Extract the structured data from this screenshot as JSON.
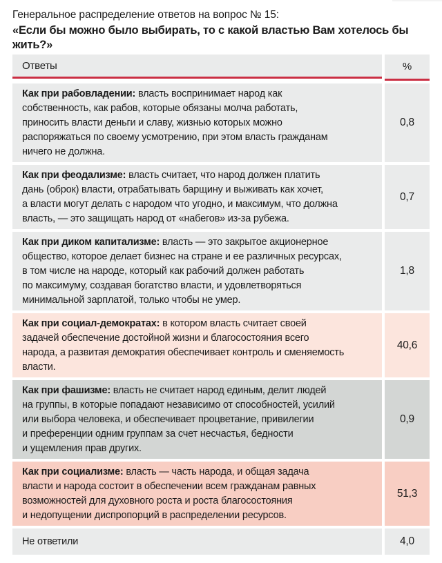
{
  "title": {
    "line1": "Генеральное распределение ответов на вопрос № 15:",
    "line2": "«Если бы можно было выбирать, то с какой властью Вам хотелось бы жить?»"
  },
  "colors": {
    "accent_red": "#cb2e43",
    "gray": "#eaebeb",
    "gray_dark": "#d3d6d4",
    "pink_light": "#fce5dd",
    "pink": "#f8cec3",
    "text": "#1b1b1b"
  },
  "table": {
    "headers": {
      "answers": "Ответы",
      "percent": "%"
    },
    "rows": [
      {
        "bold": "Как при рабовладении:",
        "text": " власть воспринимает народ как\nсобственность, как рабов, которые обязаны молча работать,\nприносить власти деньги и славу, жизнью которых можно\nраспоряжаться по своему усмотрению, при этом власть гражданам\nничего не должна.",
        "value": "0,8",
        "bg": "gray"
      },
      {
        "bold": "Как при феодализме:",
        "text": " власть считает, что народ должен платить\nдань (оброк) власти, отрабатывать барщину и выживать как хочет,\nа власти могут делать с народом что угодно, и максимум, что должна\nвласть, — это защищать народ от «набегов» из-за рубежа.",
        "value": "0,7",
        "bg": "gray"
      },
      {
        "bold": "Как при диком капитализме:",
        "text": " власть — это закрытое акционерное\nобщество, которое делает бизнес на стране и ее различных ресурсах,\nв том числе на народе, который как рабочий должен работать\nпо максимуму, создавая богатство власти, и удовлетворяться\nминимальной зарплатой, только чтобы не умер.",
        "value": "1,8",
        "bg": "gray"
      },
      {
        "bold": "Как при социал-демократах:",
        "text": " в котором власть считает своей\nзадачей обеспечение достойной жизни и благосостояния всего\nнарода, а развитая демократия обеспечивает контроль и сменяемость\nвласти.",
        "value": "40,6",
        "bg": "pink_light"
      },
      {
        "bold": "Как при фашизме:",
        "text": " власть не считает народ единым, делит людей\nна группы, в которые попадают независимо от способностей, усилий\nили выбора человека, и обеспечивает процветание, привилегии\nи преференции одним группам за счет несчастья, бедности\nи ущемления прав других.",
        "value": "0,9",
        "bg": "gray_dark"
      },
      {
        "bold": "Как при социализме:",
        "text": " власть — часть народа, и общая задача\nвласти и народа состоит в обеспечении всем гражданам равных\nвозможностей для духовного роста и роста благосостояния\nи недопущении диспропорций в распределении ресурсов.",
        "value": "51,3",
        "bg": "gray"
      },
      {
        "bold": "",
        "text": "Не ответили",
        "value": "4,0",
        "bg": "gray"
      }
    ]
  }
}
